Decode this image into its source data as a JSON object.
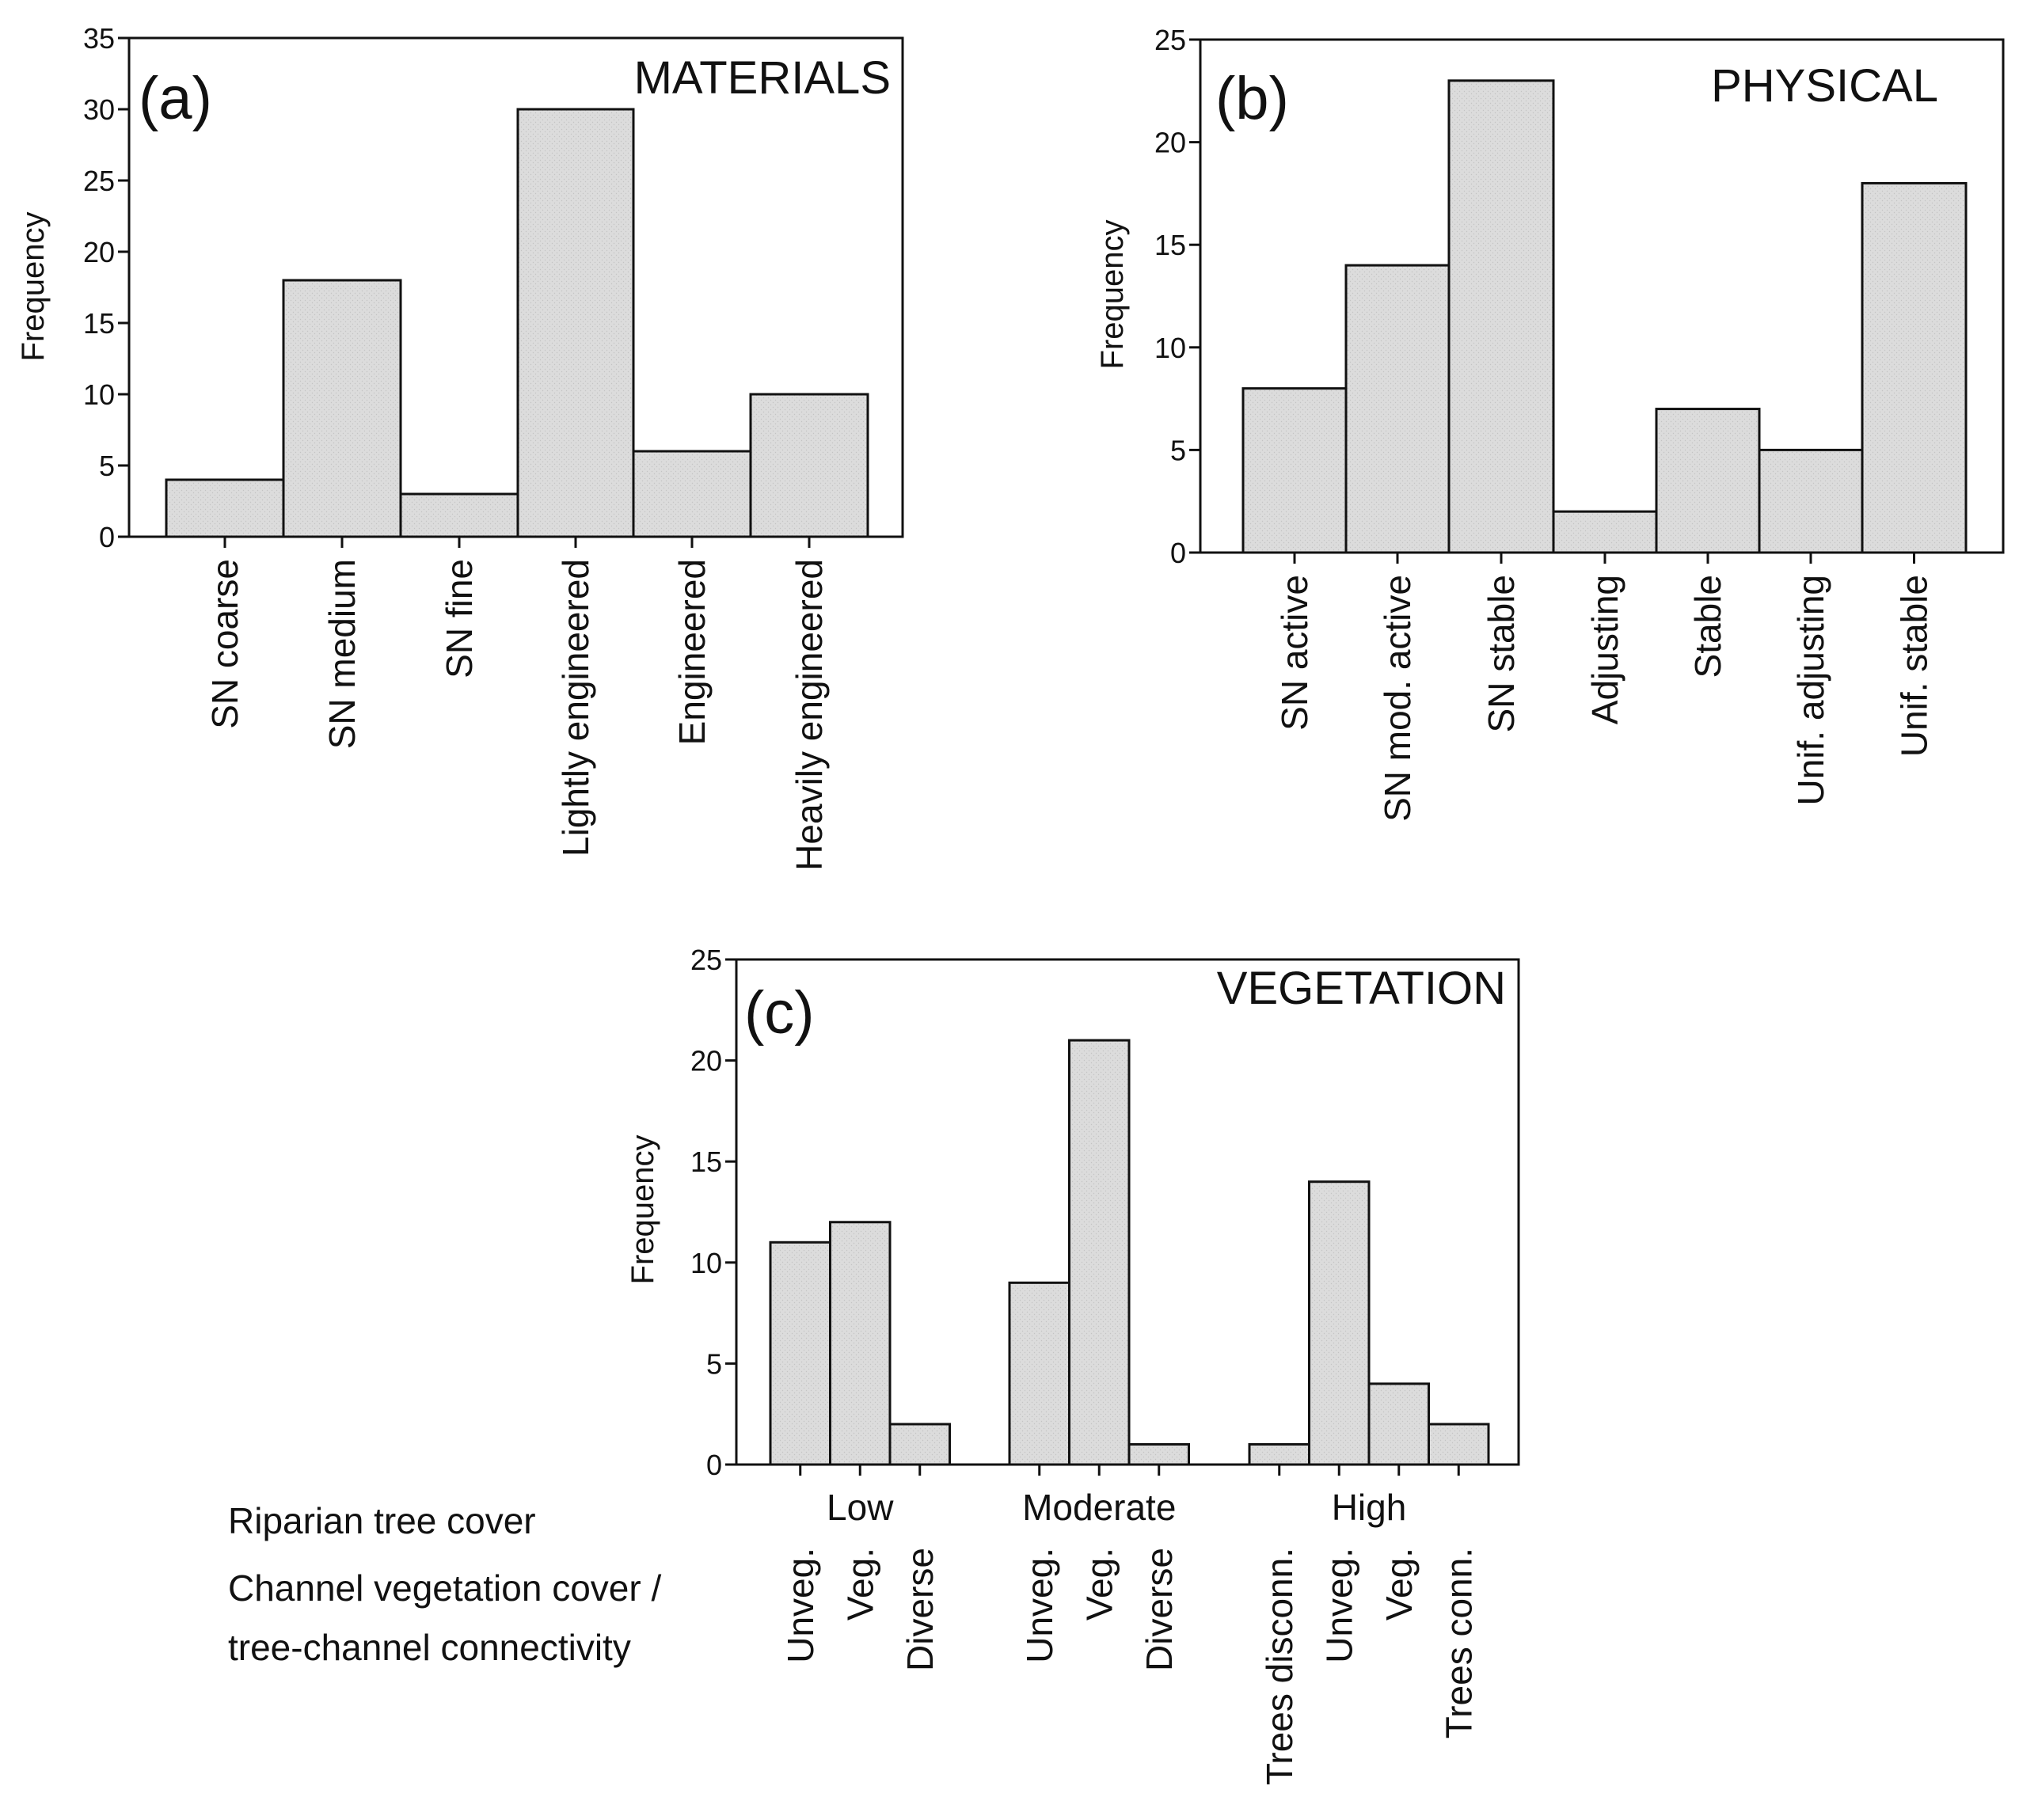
{
  "chart_data": [
    {
      "type": "bar",
      "panel_label": "(a)",
      "title": "MATERIALS",
      "ylabel": "Frequency",
      "ylim": [
        0,
        35
      ],
      "yticks": [
        0,
        5,
        10,
        15,
        20,
        25,
        30,
        35
      ],
      "categories": [
        "SN coarse",
        "SN medium",
        "SN fine",
        "Lightly engineered",
        "Engineered",
        "Heavily engineered"
      ],
      "values": [
        4,
        18,
        3,
        30,
        6,
        10
      ],
      "bar_color": "#dcdcdc"
    },
    {
      "type": "bar",
      "panel_label": "(b)",
      "title": "PHYSICAL",
      "ylabel": "Frequency",
      "ylim": [
        0,
        25
      ],
      "yticks": [
        0,
        5,
        10,
        15,
        20,
        25
      ],
      "categories": [
        "SN active",
        "SN mod. active",
        "SN stable",
        "Adjusting",
        "Stable",
        "Unif. adjusting",
        "Unif. stable"
      ],
      "values": [
        8,
        14,
        23,
        2,
        7,
        5,
        18
      ],
      "bar_color": "#dcdcdc"
    },
    {
      "type": "bar",
      "panel_label": "(c)",
      "title": "VEGETATION",
      "ylabel": "Frequency",
      "ylim": [
        0,
        25
      ],
      "yticks": [
        0,
        5,
        10,
        15,
        20,
        25
      ],
      "row_captions": [
        "Riparian tree cover",
        "Channel vegetation cover /",
        "tree-channel connectivity"
      ],
      "groups": [
        {
          "label": "Low",
          "categories": [
            "Unveg.",
            "Veg.",
            "Diverse"
          ],
          "values": [
            11,
            12,
            2
          ]
        },
        {
          "label": "Moderate",
          "categories": [
            "Unveg.",
            "Veg.",
            "Diverse"
          ],
          "values": [
            9,
            21,
            1
          ]
        },
        {
          "label": "High",
          "categories": [
            "Trees disconn.",
            "Unveg.",
            "Veg.",
            "Trees conn."
          ],
          "values": [
            1,
            14,
            4,
            2
          ]
        }
      ],
      "bar_color": "#dcdcdc"
    }
  ]
}
